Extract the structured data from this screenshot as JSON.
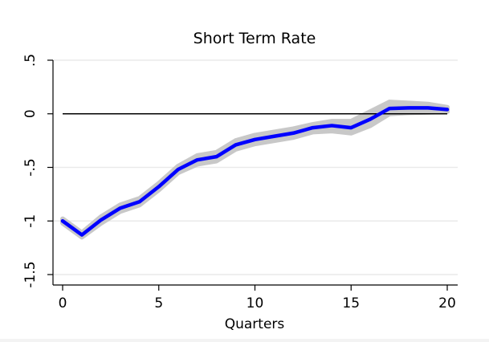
{
  "chart_data": {
    "type": "line",
    "title": "Short Term Rate",
    "xlabel": "Quarters",
    "ylabel": "",
    "xlim": [
      0,
      20
    ],
    "ylim": [
      -1.5,
      0.5
    ],
    "xticks": [
      0,
      5,
      10,
      15,
      20
    ],
    "xtick_labels": [
      "0",
      "5",
      "10",
      "15",
      "20"
    ],
    "yticks": [
      -1.5,
      -1,
      -0.5,
      0,
      0.5
    ],
    "ytick_labels": [
      "-1.5",
      "-1",
      "-.5",
      "0",
      ".5"
    ],
    "grid": true,
    "reference_line_y": 0,
    "x": [
      0,
      1,
      2,
      3,
      4,
      5,
      6,
      7,
      8,
      9,
      10,
      11,
      12,
      13,
      14,
      15,
      16,
      17,
      18,
      19,
      20
    ],
    "series": [
      {
        "values": [
          -1.0,
          -1.13,
          -0.99,
          -0.88,
          -0.82,
          -0.68,
          -0.52,
          -0.43,
          -0.4,
          -0.29,
          -0.24,
          -0.21,
          -0.18,
          -0.13,
          -0.11,
          -0.13,
          -0.05,
          0.05,
          0.055,
          0.055,
          0.04
        ],
        "lower": [
          -1.02,
          -1.15,
          -1.02,
          -0.91,
          -0.85,
          -0.71,
          -0.55,
          -0.47,
          -0.44,
          -0.33,
          -0.28,
          -0.25,
          -0.22,
          -0.17,
          -0.16,
          -0.18,
          -0.11,
          0.0,
          0.01,
          0.015,
          0.02
        ],
        "upper": [
          -0.98,
          -1.11,
          -0.96,
          -0.85,
          -0.79,
          -0.65,
          -0.49,
          -0.39,
          -0.36,
          -0.25,
          -0.2,
          -0.17,
          -0.14,
          -0.1,
          -0.07,
          -0.07,
          0.02,
          0.11,
          0.1,
          0.09,
          0.06
        ],
        "color": "#0000ff",
        "band_color": "#c8c8c8"
      }
    ],
    "colors": {
      "zero_line": "#000000",
      "grid": "#eaeaea",
      "axis": "#000000"
    }
  }
}
